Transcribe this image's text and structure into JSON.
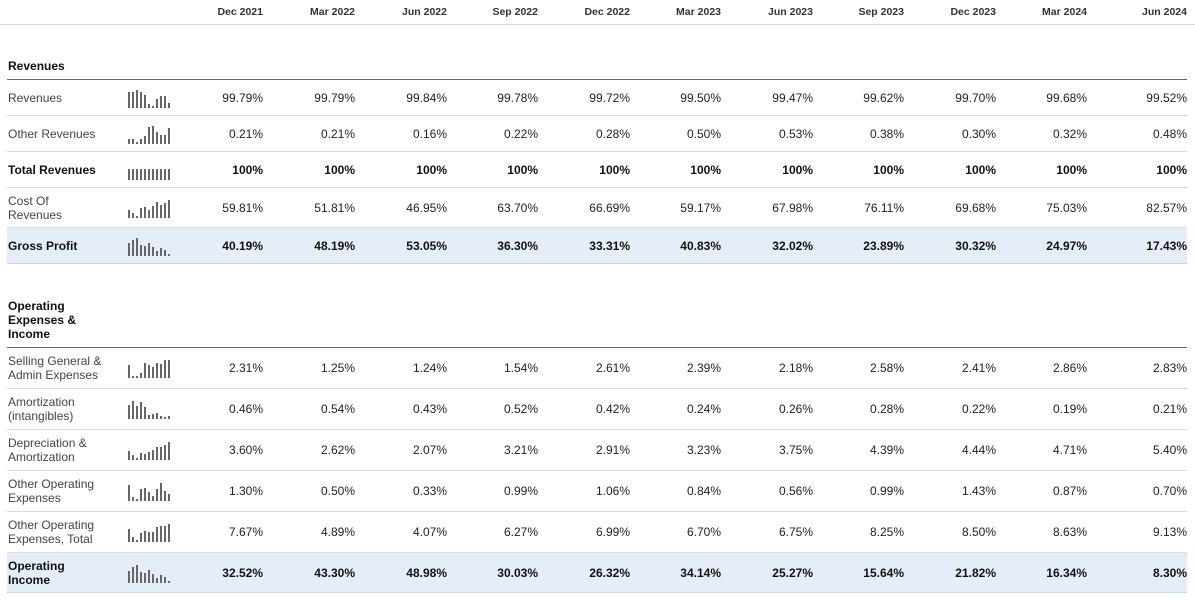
{
  "columns": [
    "Dec 2021",
    "Mar 2022",
    "Jun 2022",
    "Sep 2022",
    "Dec 2022",
    "Mar 2023",
    "Jun 2023",
    "Sep 2023",
    "Dec 2023",
    "Mar 2024",
    "Jun 2024"
  ],
  "sections": [
    {
      "title": "Revenues",
      "rows": [
        {
          "label": "Revenues",
          "bold": false,
          "highlight": false,
          "values": [
            "99.79%",
            "99.79%",
            "99.84%",
            "99.78%",
            "99.72%",
            "99.50%",
            "99.47%",
            "99.62%",
            "99.70%",
            "99.68%",
            "99.52%"
          ]
        },
        {
          "label": "Other Revenues",
          "bold": false,
          "highlight": false,
          "values": [
            "0.21%",
            "0.21%",
            "0.16%",
            "0.22%",
            "0.28%",
            "0.50%",
            "0.53%",
            "0.38%",
            "0.30%",
            "0.32%",
            "0.48%"
          ]
        },
        {
          "label": "Total Revenues",
          "bold": true,
          "highlight": false,
          "values": [
            "100%",
            "100%",
            "100%",
            "100%",
            "100%",
            "100%",
            "100%",
            "100%",
            "100%",
            "100%",
            "100%"
          ]
        },
        {
          "label": "Cost Of Revenues",
          "bold": false,
          "highlight": false,
          "values": [
            "59.81%",
            "51.81%",
            "46.95%",
            "63.70%",
            "66.69%",
            "59.17%",
            "67.98%",
            "76.11%",
            "69.68%",
            "75.03%",
            "82.57%"
          ]
        },
        {
          "label": "Gross Profit",
          "bold": true,
          "highlight": true,
          "values": [
            "40.19%",
            "48.19%",
            "53.05%",
            "36.30%",
            "33.31%",
            "40.83%",
            "32.02%",
            "23.89%",
            "30.32%",
            "24.97%",
            "17.43%"
          ]
        }
      ]
    },
    {
      "title": "Operating Expenses & Income",
      "rows": [
        {
          "label": "Selling General & Admin Expenses",
          "bold": false,
          "highlight": false,
          "values": [
            "2.31%",
            "1.25%",
            "1.24%",
            "1.54%",
            "2.61%",
            "2.39%",
            "2.18%",
            "2.58%",
            "2.41%",
            "2.86%",
            "2.83%"
          ]
        },
        {
          "label": "Amortization (intangibles)",
          "bold": false,
          "highlight": false,
          "values": [
            "0.46%",
            "0.54%",
            "0.43%",
            "0.52%",
            "0.42%",
            "0.24%",
            "0.26%",
            "0.28%",
            "0.22%",
            "0.19%",
            "0.21%"
          ]
        },
        {
          "label": "Depreciation & Amortization",
          "bold": false,
          "highlight": false,
          "values": [
            "3.60%",
            "2.62%",
            "2.07%",
            "3.21%",
            "2.91%",
            "3.23%",
            "3.75%",
            "4.39%",
            "4.44%",
            "4.71%",
            "5.40%"
          ]
        },
        {
          "label": "Other Operating Expenses",
          "bold": false,
          "highlight": false,
          "values": [
            "1.30%",
            "0.50%",
            "0.33%",
            "0.99%",
            "1.06%",
            "0.84%",
            "0.56%",
            "0.99%",
            "1.43%",
            "0.87%",
            "0.70%"
          ]
        },
        {
          "label": "Other Operating Expenses, Total",
          "bold": false,
          "highlight": false,
          "values": [
            "7.67%",
            "4.89%",
            "4.07%",
            "6.27%",
            "6.99%",
            "6.70%",
            "6.75%",
            "8.25%",
            "8.50%",
            "8.63%",
            "9.13%"
          ]
        },
        {
          "label": "Operating Income",
          "bold": true,
          "highlight": true,
          "values": [
            "32.52%",
            "43.30%",
            "48.98%",
            "30.03%",
            "26.32%",
            "34.14%",
            "25.27%",
            "15.64%",
            "21.82%",
            "16.34%",
            "8.30%"
          ]
        }
      ]
    }
  ]
}
